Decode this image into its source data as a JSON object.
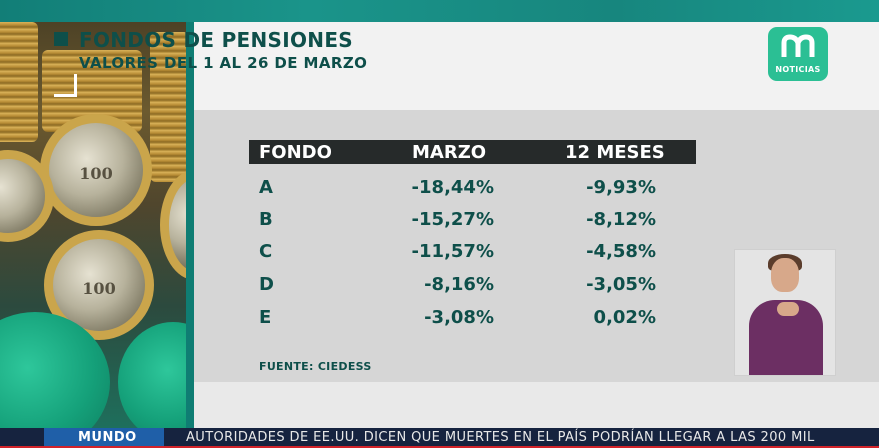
{
  "graphic": {
    "title": "FONDOS DE PENSIONES",
    "subtitle": "VALORES DEL 1 AL 26 DE MARZO",
    "source": "FUENTE: CIEDESS"
  },
  "logo": {
    "label": "NOTICIAS"
  },
  "table": {
    "headers": [
      "FONDO",
      "MARZO",
      "12 MESES"
    ],
    "rows": [
      {
        "fondo": "A",
        "marzo": "-18,44%",
        "meses": "-9,93%"
      },
      {
        "fondo": "B",
        "marzo": "-15,27%",
        "meses": "-8,12%"
      },
      {
        "fondo": "C",
        "marzo": "-11,57%",
        "meses": "-4,58%"
      },
      {
        "fondo": "D",
        "marzo": "-8,16%",
        "meses": "-3,05%"
      },
      {
        "fondo": "E",
        "marzo": "-3,08%",
        "meses": "0,02%"
      }
    ]
  },
  "coins": {
    "coin_value": "100"
  },
  "ticker": {
    "label": "MUNDO",
    "text": "AUTORIDADES DE EE.UU. DICEN QUE MUERTES EN EL PAÍS PODRÍAN LLEGAR A LAS 200 MIL"
  },
  "colors": {
    "brand_green": "#2bbf94",
    "text_teal": "#0e4f4a",
    "header_dark": "#262a2a",
    "ticker_blue": "#1f5fa8"
  }
}
